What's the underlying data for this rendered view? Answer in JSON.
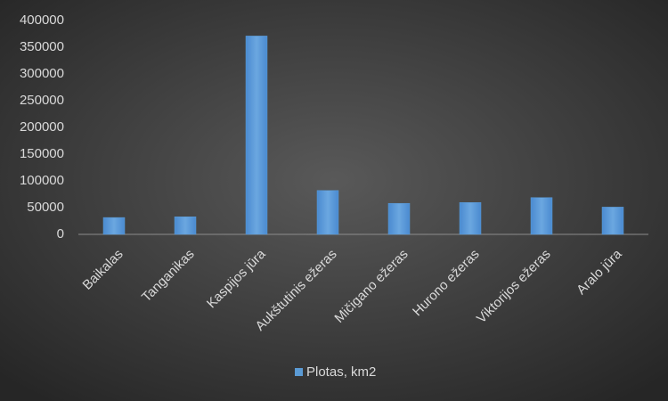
{
  "chart_data": {
    "type": "bar",
    "categories": [
      "Baikalas",
      "Tanganikas",
      "Kaspijos jūra",
      "Aukštutinis ežeras",
      "Mičigano ežeras",
      "Hurono ežeras",
      "Viktorijos ežeras",
      "Aralo jūra"
    ],
    "series": [
      {
        "name": "Plotas, km2",
        "color": "#5b9bd5",
        "values": [
          31500,
          32900,
          371000,
          82100,
          58000,
          59600,
          68800,
          51000
        ]
      }
    ],
    "ylim": [
      0,
      400000
    ],
    "yticks": [
      0,
      50000,
      100000,
      150000,
      200000,
      250000,
      300000,
      350000,
      400000
    ],
    "legend": "bottom"
  }
}
